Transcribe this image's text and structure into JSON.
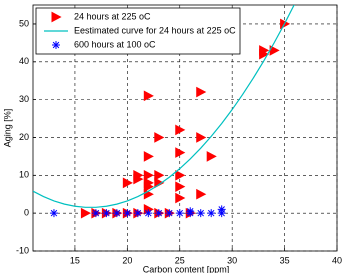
{
  "chart_data": {
    "type": "scatter",
    "x_label": "Carbon content [ppm]",
    "y_label": "Aging [%]",
    "xlim": [
      11,
      40
    ],
    "xticks": [
      15,
      20,
      25,
      30,
      35,
      40
    ],
    "ylim": [
      -10,
      55
    ],
    "yticks": [
      -10,
      0,
      10,
      20,
      30,
      40,
      50
    ],
    "grid": true,
    "legend": "upper left",
    "series": [
      {
        "name": "24 hours at 225 oC",
        "color": "#ff0000",
        "marker": "triangle-right",
        "x": [
          16,
          17,
          18,
          19,
          20,
          20,
          21,
          21,
          21,
          22,
          22,
          22,
          22,
          22,
          22,
          22,
          23,
          23,
          23,
          23,
          24,
          25,
          25,
          25,
          25,
          25,
          26,
          27,
          27,
          27,
          28,
          33,
          33,
          34,
          35
        ],
        "y": [
          0,
          0,
          0,
          0,
          0,
          8,
          0,
          9,
          10,
          31,
          15,
          10,
          8,
          7,
          5,
          1,
          20,
          10,
          8,
          0,
          0,
          22,
          16,
          10,
          7,
          4,
          0,
          32,
          20,
          5,
          15,
          43,
          42,
          43,
          50
        ]
      },
      {
        "name": "Eestimated curve for 24 hours at 225 oC",
        "color": "#00c0c0",
        "marker": "line",
        "x": [
          11,
          12,
          13,
          14,
          15,
          16,
          17,
          18,
          19,
          20,
          21,
          22,
          23,
          24,
          25,
          26,
          27,
          28,
          29,
          30,
          31,
          32,
          33,
          34,
          35,
          36
        ],
        "y": [
          5.8,
          4.38,
          3.24,
          2.39,
          1.82,
          1.54,
          1.54,
          1.82,
          2.39,
          3.24,
          4.38,
          5.8,
          7.5,
          9.49,
          11.76,
          14.32,
          17.16,
          20.28,
          23.69,
          27.38,
          31.36,
          35.62,
          40.16,
          44.99,
          50.1,
          55.5
        ]
      },
      {
        "name": "600 hours at 100 oC",
        "color": "#0000ff",
        "marker": "star",
        "x": [
          13,
          17,
          18,
          19,
          20,
          21,
          22,
          23,
          24,
          25,
          26,
          26,
          27,
          28,
          29,
          29
        ],
        "y": [
          0,
          0,
          0,
          0,
          0,
          0,
          0,
          0,
          0,
          0,
          0.5,
          0,
          0,
          0,
          1,
          0
        ]
      }
    ]
  }
}
